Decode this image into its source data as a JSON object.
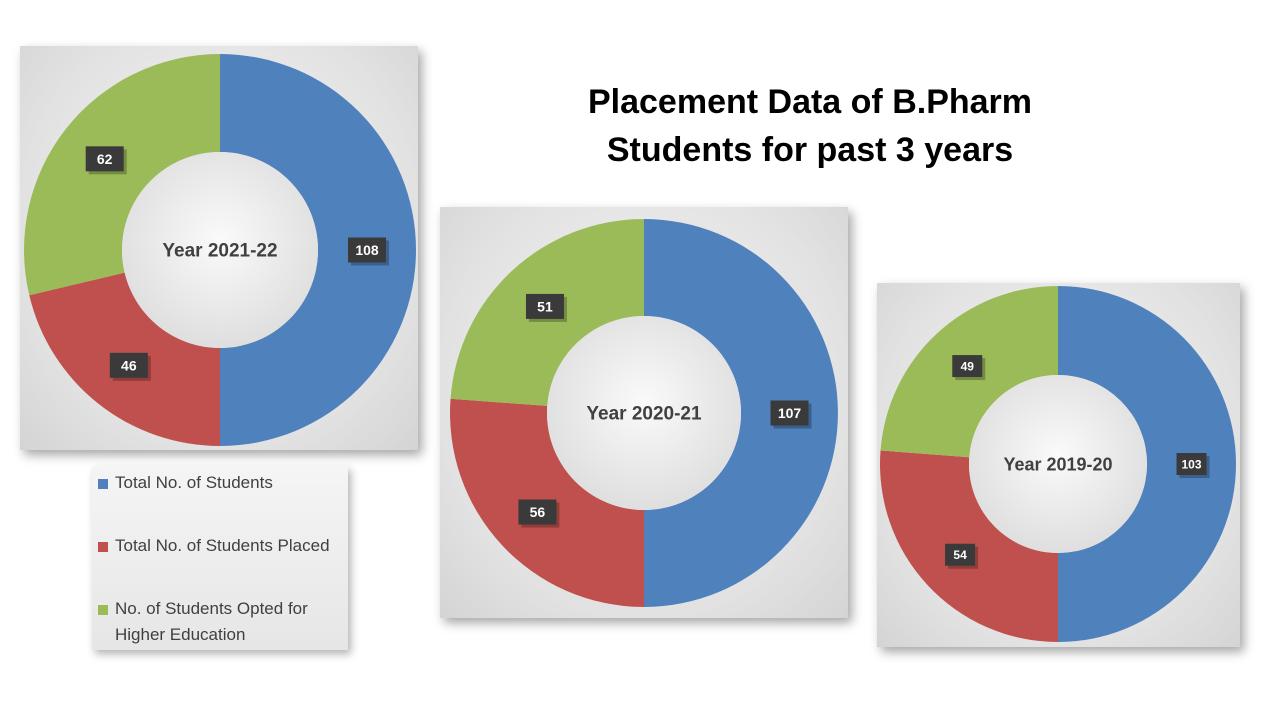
{
  "title": {
    "line1": "Placement Data of B.Pharm",
    "line2": "Students for past 3 years"
  },
  "legend": {
    "items": [
      {
        "label": "Total No. of Students",
        "color": "#4F81BD"
      },
      {
        "label": "Total No. of Students Placed",
        "color": "#C0504D"
      },
      {
        "label": "No. of Students Opted for Higher Education",
        "color": "#9BBB59"
      }
    ]
  },
  "chart_data": [
    {
      "type": "pie",
      "title": "Year 2021-22",
      "categories": [
        "Total No. of Students",
        "Total No. of Students Placed",
        "No. of Students Opted for Higher Education"
      ],
      "values": [
        108,
        46,
        62
      ],
      "colors": [
        "#4F81BD",
        "#C0504D",
        "#9BBB59"
      ]
    },
    {
      "type": "pie",
      "title": "Year 2020-21",
      "categories": [
        "Total No. of Students",
        "Total No. of Students Placed",
        "No. of Students Opted for Higher Education"
      ],
      "values": [
        107,
        56,
        51
      ],
      "colors": [
        "#4F81BD",
        "#C0504D",
        "#9BBB59"
      ]
    },
    {
      "type": "pie",
      "title": "Year 2019-20",
      "categories": [
        "Total No. of Students",
        "Total No. of Students Placed",
        "No. of Students Opted for Higher Education"
      ],
      "values": [
        103,
        54,
        49
      ],
      "colors": [
        "#4F81BD",
        "#C0504D",
        "#9BBB59"
      ]
    }
  ]
}
